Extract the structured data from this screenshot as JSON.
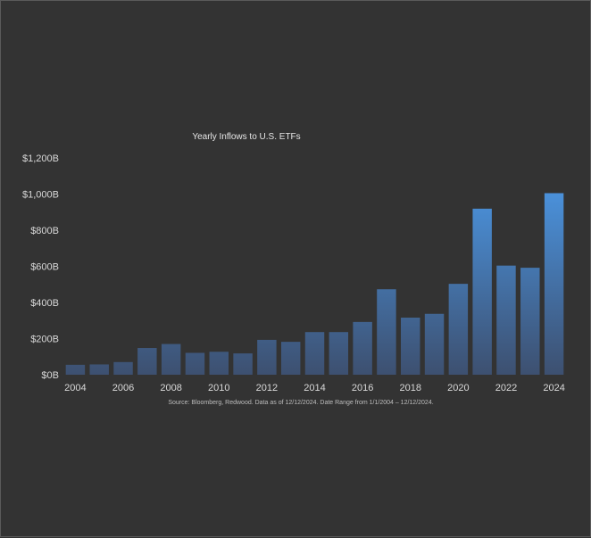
{
  "chart_data": {
    "type": "bar",
    "title": "Yearly Inflows to U.S. ETFs",
    "xlabel": "",
    "ylabel": "",
    "categories": [
      "2004",
      "2005",
      "2006",
      "2007",
      "2008",
      "2009",
      "2010",
      "2011",
      "2012",
      "2013",
      "2014",
      "2015",
      "2016",
      "2017",
      "2018",
      "2019",
      "2020",
      "2021",
      "2022",
      "2023",
      "2024"
    ],
    "values": [
      55,
      57,
      70,
      148,
      170,
      121,
      127,
      118,
      193,
      182,
      236,
      236,
      292,
      473,
      316,
      337,
      503,
      919,
      604,
      592,
      1005
    ],
    "ylim": [
      0,
      1200
    ],
    "yticks": [
      0,
      200,
      400,
      600,
      800,
      1000,
      1200
    ],
    "ytick_labels": [
      "$0B",
      "$200B",
      "$400B",
      "$600B",
      "$800B",
      "$1,000B",
      "$1,200B"
    ],
    "xtick_labels": [
      "2004",
      "",
      "2006",
      "",
      "2008",
      "",
      "2010",
      "",
      "2012",
      "",
      "2014",
      "",
      "2016",
      "",
      "2018",
      "",
      "2020",
      "",
      "2022",
      "",
      "2024"
    ],
    "grid": false,
    "legend": "none",
    "source_note": "Source: Bloomberg, Redwood. Data as of 12/12/2024. Date Range from 1/1/2004 – 12/12/2024.",
    "colors": {
      "background": "#333333",
      "bar_bottom": "#3d5070",
      "bar_top": "#4a90d9"
    }
  }
}
